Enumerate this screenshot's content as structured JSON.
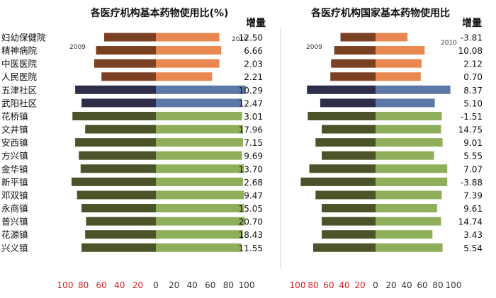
{
  "categories": [
    "妇幼保健院",
    "精神病院",
    "中医医院",
    "人民医院",
    "五津社区",
    "武阳社区",
    "花桥镇",
    "文井镇",
    "安西镇",
    "方兴镇",
    "金华镇",
    "新平镇",
    "邓双镇",
    "永商镇",
    "普兴镇",
    "花源镇",
    "兴义镇"
  ],
  "increase_header": "增量",
  "colors": {
    "hospital_2009": "#7b3f22",
    "hospital_2010": "#e8874f",
    "community_2009": "#2e2e4a",
    "community_2010": "#5b78a8",
    "town_2009": "#4a5428",
    "town_2010": "#8fae5a",
    "negative_tick": "#d62020",
    "tick": "#333333"
  },
  "chart_data": [
    {
      "type": "bar",
      "orientation": "horizontal-butterfly",
      "title": "各医疗机构基本药物使用比(%)",
      "year_labels": [
        "2009",
        "2010"
      ],
      "categories": [
        "妇幼保健院",
        "精神病院",
        "中医医院",
        "人民医院",
        "五津社区",
        "武阳社区",
        "花桥镇",
        "文井镇",
        "安西镇",
        "方兴镇",
        "金华镇",
        "新平镇",
        "邓双镇",
        "永商镇",
        "普兴镇",
        "花源镇",
        "兴义镇"
      ],
      "series": [
        {
          "name": "2009",
          "direction": "left",
          "values": [
            57,
            66,
            68,
            60,
            89,
            82,
            92,
            78,
            89,
            85,
            83,
            93,
            87,
            82,
            77,
            78,
            82
          ]
        },
        {
          "name": "2010",
          "direction": "right",
          "values": [
            70,
            72,
            70,
            62,
            99,
            95,
            95,
            96,
            96,
            95,
            97,
            96,
            97,
            97,
            98,
            96,
            94
          ]
        }
      ],
      "increase_values": [
        "12.50",
        "6.66",
        "2.03",
        "2.21",
        "10.29",
        "12.47",
        "3.01",
        "17.96",
        "7.15",
        "9.69",
        "13.70",
        "2.68",
        "9.47",
        "15.05",
        "20.70",
        "18.43",
        "11.55"
      ],
      "xticks": [
        "100",
        "80",
        "60",
        "40",
        "20",
        "0",
        "20",
        "40",
        "60",
        "80",
        "100"
      ],
      "xlim": [
        -100,
        100
      ],
      "grid": false
    },
    {
      "type": "bar",
      "orientation": "horizontal-butterfly",
      "title": "各医疗机构国家基本药物使用比",
      "year_labels": [
        "2009",
        "2010"
      ],
      "categories": [
        "妇幼保健院",
        "精神病院",
        "中医医院",
        "人民医院",
        "五津社区",
        "武阳社区",
        "花桥镇",
        "文井镇",
        "安西镇",
        "方兴镇",
        "金华镇",
        "新平镇",
        "邓双镇",
        "永商镇",
        "普兴镇",
        "花源镇",
        "兴义镇"
      ],
      "series": [
        {
          "name": "2009",
          "direction": "left",
          "values": [
            45,
            53,
            57,
            58,
            88,
            71,
            87,
            69,
            77,
            69,
            85,
            96,
            77,
            69,
            69,
            69,
            80
          ]
        },
        {
          "name": "2010",
          "direction": "right",
          "values": [
            41,
            63,
            59,
            58,
            96,
            76,
            85,
            84,
            86,
            75,
            92,
            92,
            85,
            79,
            84,
            73,
            86
          ]
        }
      ],
      "increase_values": [
        "-3.81",
        "10.08",
        "2.12",
        "0.70",
        "8.37",
        "5.10",
        "-1.51",
        "14.75",
        "9.01",
        "5.55",
        "7.07",
        "-3.88",
        "7.39",
        "9.61",
        "14.74",
        "3.43",
        "5.54"
      ],
      "xticks": [
        "100",
        "80",
        "60",
        "40",
        "20",
        "0",
        "20",
        "40",
        "60",
        "80",
        "100"
      ],
      "xlim": [
        -100,
        100
      ],
      "grid": false
    }
  ]
}
